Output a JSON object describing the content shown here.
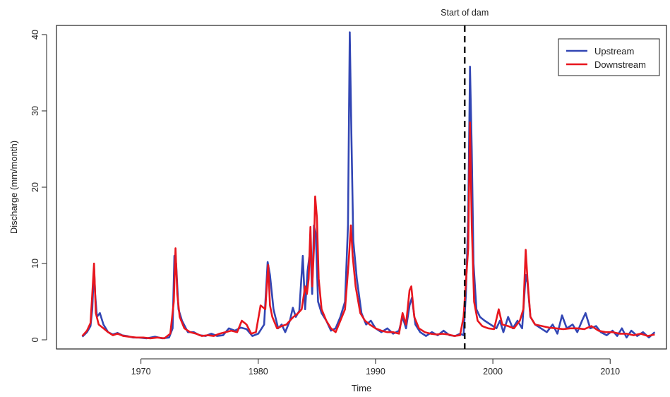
{
  "chart_data": {
    "type": "line",
    "xlabel": "Time",
    "ylabel": "Discharge (mm/month)",
    "xlim": [
      1962.8,
      2014.8
    ],
    "ylim": [
      -1.2,
      41.2
    ],
    "x_ticks": [
      1970,
      1980,
      1990,
      2000,
      2010
    ],
    "y_ticks": [
      0,
      10,
      20,
      30,
      40
    ],
    "grid": false,
    "legend_position": "top-right",
    "annotation": {
      "x": 1997.6,
      "label": "Start of dam",
      "style": "dashed-vertical-line"
    },
    "series": [
      {
        "name": "Upstream",
        "color": "#3246b4",
        "points": [
          [
            1965.0,
            0.4
          ],
          [
            1965.4,
            1.0
          ],
          [
            1965.7,
            1.8
          ],
          [
            1965.85,
            4.0
          ],
          [
            1966.0,
            9.5
          ],
          [
            1966.1,
            6.0
          ],
          [
            1966.25,
            3.0
          ],
          [
            1966.5,
            3.5
          ],
          [
            1966.8,
            2.0
          ],
          [
            1967.2,
            1.0
          ],
          [
            1967.6,
            0.7
          ],
          [
            1968.0,
            0.9
          ],
          [
            1968.4,
            0.6
          ],
          [
            1968.8,
            0.5
          ],
          [
            1969.3,
            0.3
          ],
          [
            1969.8,
            0.3
          ],
          [
            1970.5,
            0.2
          ],
          [
            1971.2,
            0.4
          ],
          [
            1971.8,
            0.2
          ],
          [
            1972.4,
            0.3
          ],
          [
            1972.7,
            1.5
          ],
          [
            1972.85,
            11.0
          ],
          [
            1973.0,
            10.0
          ],
          [
            1973.2,
            4.0
          ],
          [
            1973.5,
            2.5
          ],
          [
            1974.0,
            1.0
          ],
          [
            1974.5,
            1.0
          ],
          [
            1975.0,
            0.6
          ],
          [
            1975.5,
            0.5
          ],
          [
            1976.0,
            0.8
          ],
          [
            1976.5,
            0.5
          ],
          [
            1977.0,
            0.6
          ],
          [
            1977.5,
            1.5
          ],
          [
            1978.0,
            1.2
          ],
          [
            1978.5,
            1.6
          ],
          [
            1979.0,
            1.4
          ],
          [
            1979.5,
            0.5
          ],
          [
            1980.0,
            0.8
          ],
          [
            1980.5,
            2.0
          ],
          [
            1980.8,
            10.2
          ],
          [
            1981.0,
            8.5
          ],
          [
            1981.3,
            4.0
          ],
          [
            1981.7,
            1.5
          ],
          [
            1982.0,
            2.0
          ],
          [
            1982.3,
            1.0
          ],
          [
            1982.7,
            2.5
          ],
          [
            1982.95,
            4.2
          ],
          [
            1983.2,
            3.0
          ],
          [
            1983.5,
            3.8
          ],
          [
            1983.8,
            11.0
          ],
          [
            1984.0,
            4.0
          ],
          [
            1984.2,
            9.0
          ],
          [
            1984.45,
            12.0
          ],
          [
            1984.6,
            6.0
          ],
          [
            1984.75,
            15.0
          ],
          [
            1984.9,
            14.0
          ],
          [
            1985.1,
            5.0
          ],
          [
            1985.4,
            3.5
          ],
          [
            1985.8,
            2.5
          ],
          [
            1986.2,
            1.2
          ],
          [
            1986.6,
            1.5
          ],
          [
            1987.0,
            3.0
          ],
          [
            1987.4,
            5.0
          ],
          [
            1987.65,
            15.0
          ],
          [
            1987.8,
            40.3
          ],
          [
            1987.95,
            26.0
          ],
          [
            1988.1,
            13.0
          ],
          [
            1988.4,
            8.0
          ],
          [
            1988.8,
            3.5
          ],
          [
            1989.2,
            2.0
          ],
          [
            1989.6,
            2.5
          ],
          [
            1990.0,
            1.5
          ],
          [
            1990.5,
            1.0
          ],
          [
            1991.0,
            1.5
          ],
          [
            1991.5,
            0.8
          ],
          [
            1992.0,
            1.2
          ],
          [
            1992.3,
            3.0
          ],
          [
            1992.6,
            1.5
          ],
          [
            1992.9,
            4.5
          ],
          [
            1993.1,
            5.5
          ],
          [
            1993.4,
            2.0
          ],
          [
            1993.8,
            1.0
          ],
          [
            1994.3,
            0.5
          ],
          [
            1994.8,
            1.0
          ],
          [
            1995.3,
            0.6
          ],
          [
            1995.8,
            1.2
          ],
          [
            1996.3,
            0.6
          ],
          [
            1996.8,
            0.5
          ],
          [
            1997.2,
            0.8
          ],
          [
            1997.5,
            0.6
          ],
          [
            1997.7,
            6.0
          ],
          [
            1997.9,
            16.0
          ],
          [
            1998.05,
            35.8
          ],
          [
            1998.2,
            25.0
          ],
          [
            1998.35,
            10.0
          ],
          [
            1998.6,
            4.0
          ],
          [
            1998.9,
            3.0
          ],
          [
            1999.3,
            2.5
          ],
          [
            1999.8,
            2.0
          ],
          [
            2000.3,
            1.5
          ],
          [
            2000.6,
            2.5
          ],
          [
            2000.9,
            1.0
          ],
          [
            2001.3,
            3.0
          ],
          [
            2001.7,
            1.5
          ],
          [
            2002.1,
            2.5
          ],
          [
            2002.5,
            1.5
          ],
          [
            2002.8,
            8.5
          ],
          [
            2002.95,
            7.5
          ],
          [
            2003.2,
            3.0
          ],
          [
            2003.6,
            2.0
          ],
          [
            2004.1,
            1.5
          ],
          [
            2004.6,
            1.0
          ],
          [
            2005.1,
            2.0
          ],
          [
            2005.5,
            0.8
          ],
          [
            2005.9,
            3.2
          ],
          [
            2006.3,
            1.5
          ],
          [
            2006.8,
            2.0
          ],
          [
            2007.2,
            1.0
          ],
          [
            2007.6,
            2.5
          ],
          [
            2007.9,
            3.5
          ],
          [
            2008.3,
            1.5
          ],
          [
            2008.8,
            1.8
          ],
          [
            2009.2,
            1.0
          ],
          [
            2009.7,
            0.6
          ],
          [
            2010.2,
            1.2
          ],
          [
            2010.6,
            0.5
          ],
          [
            2011.0,
            1.5
          ],
          [
            2011.4,
            0.3
          ],
          [
            2011.8,
            1.2
          ],
          [
            2012.3,
            0.5
          ],
          [
            2012.8,
            1.0
          ],
          [
            2013.3,
            0.3
          ],
          [
            2013.8,
            1.0
          ]
        ]
      },
      {
        "name": "Downstream",
        "color": "#e8161e",
        "points": [
          [
            1965.0,
            0.5
          ],
          [
            1965.4,
            1.2
          ],
          [
            1965.7,
            2.2
          ],
          [
            1965.85,
            6.0
          ],
          [
            1966.0,
            10.0
          ],
          [
            1966.15,
            3.5
          ],
          [
            1966.4,
            2.0
          ],
          [
            1966.8,
            1.5
          ],
          [
            1967.2,
            1.0
          ],
          [
            1967.6,
            0.6
          ],
          [
            1968.0,
            0.8
          ],
          [
            1968.5,
            0.5
          ],
          [
            1969.0,
            0.4
          ],
          [
            1969.6,
            0.3
          ],
          [
            1970.2,
            0.3
          ],
          [
            1970.8,
            0.2
          ],
          [
            1971.4,
            0.3
          ],
          [
            1972.0,
            0.2
          ],
          [
            1972.5,
            0.8
          ],
          [
            1972.8,
            5.0
          ],
          [
            1972.95,
            12.0
          ],
          [
            1973.1,
            6.0
          ],
          [
            1973.3,
            3.0
          ],
          [
            1973.7,
            1.5
          ],
          [
            1974.2,
            1.0
          ],
          [
            1974.7,
            0.8
          ],
          [
            1975.2,
            0.5
          ],
          [
            1975.7,
            0.6
          ],
          [
            1976.2,
            0.5
          ],
          [
            1976.7,
            0.8
          ],
          [
            1977.2,
            1.0
          ],
          [
            1977.7,
            1.2
          ],
          [
            1978.2,
            1.0
          ],
          [
            1978.6,
            2.5
          ],
          [
            1979.0,
            2.0
          ],
          [
            1979.4,
            0.8
          ],
          [
            1979.8,
            1.0
          ],
          [
            1980.2,
            4.5
          ],
          [
            1980.6,
            4.0
          ],
          [
            1980.85,
            9.8
          ],
          [
            1981.0,
            4.5
          ],
          [
            1981.2,
            3.0
          ],
          [
            1981.6,
            1.5
          ],
          [
            1982.0,
            1.8
          ],
          [
            1982.4,
            2.0
          ],
          [
            1982.7,
            2.5
          ],
          [
            1983.0,
            3.0
          ],
          [
            1983.4,
            3.5
          ],
          [
            1983.7,
            4.0
          ],
          [
            1984.0,
            7.0
          ],
          [
            1984.15,
            6.0
          ],
          [
            1984.3,
            8.0
          ],
          [
            1984.45,
            14.8
          ],
          [
            1984.6,
            7.0
          ],
          [
            1984.75,
            12.0
          ],
          [
            1984.85,
            18.8
          ],
          [
            1985.0,
            16.0
          ],
          [
            1985.15,
            8.0
          ],
          [
            1985.4,
            4.0
          ],
          [
            1985.8,
            2.5
          ],
          [
            1986.2,
            1.5
          ],
          [
            1986.6,
            1.0
          ],
          [
            1987.0,
            2.5
          ],
          [
            1987.4,
            4.0
          ],
          [
            1987.7,
            10.0
          ],
          [
            1987.9,
            15.0
          ],
          [
            1988.05,
            11.0
          ],
          [
            1988.3,
            7.0
          ],
          [
            1988.7,
            3.5
          ],
          [
            1989.1,
            2.5
          ],
          [
            1989.5,
            2.0
          ],
          [
            1990.0,
            1.5
          ],
          [
            1990.5,
            1.2
          ],
          [
            1991.0,
            1.0
          ],
          [
            1991.5,
            1.0
          ],
          [
            1992.0,
            0.8
          ],
          [
            1992.3,
            3.5
          ],
          [
            1992.6,
            2.0
          ],
          [
            1992.9,
            6.5
          ],
          [
            1993.05,
            7.0
          ],
          [
            1993.3,
            3.0
          ],
          [
            1993.7,
            1.5
          ],
          [
            1994.2,
            1.0
          ],
          [
            1994.7,
            0.8
          ],
          [
            1995.2,
            0.7
          ],
          [
            1995.7,
            0.8
          ],
          [
            1996.2,
            0.7
          ],
          [
            1996.7,
            0.5
          ],
          [
            1997.2,
            0.6
          ],
          [
            1997.5,
            3.0
          ],
          [
            1997.7,
            7.5
          ],
          [
            1997.9,
            12.0
          ],
          [
            1998.05,
            28.5
          ],
          [
            1998.2,
            15.0
          ],
          [
            1998.4,
            5.0
          ],
          [
            1998.7,
            2.5
          ],
          [
            1999.1,
            1.8
          ],
          [
            1999.6,
            1.5
          ],
          [
            2000.1,
            1.4
          ],
          [
            2000.5,
            4.0
          ],
          [
            2000.8,
            2.0
          ],
          [
            2001.3,
            1.8
          ],
          [
            2001.8,
            1.5
          ],
          [
            2002.3,
            2.5
          ],
          [
            2002.6,
            4.0
          ],
          [
            2002.8,
            11.8
          ],
          [
            2002.95,
            8.0
          ],
          [
            2003.2,
            3.0
          ],
          [
            2003.6,
            2.0
          ],
          [
            2004.2,
            1.8
          ],
          [
            2004.8,
            1.6
          ],
          [
            2005.4,
            1.5
          ],
          [
            2006.0,
            1.4
          ],
          [
            2006.6,
            1.5
          ],
          [
            2007.2,
            1.5
          ],
          [
            2007.8,
            1.4
          ],
          [
            2008.4,
            1.8
          ],
          [
            2009.0,
            1.2
          ],
          [
            2009.6,
            1.0
          ],
          [
            2010.2,
            1.0
          ],
          [
            2010.8,
            0.8
          ],
          [
            2011.4,
            0.8
          ],
          [
            2012.0,
            0.6
          ],
          [
            2012.6,
            0.8
          ],
          [
            2013.2,
            0.5
          ],
          [
            2013.8,
            0.7
          ]
        ]
      }
    ]
  }
}
